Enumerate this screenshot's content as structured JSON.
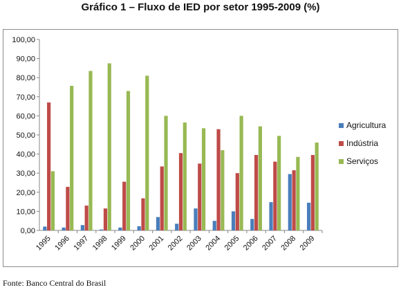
{
  "title": "Gráfico 1 – Fluxo de IED por setor 1995-2009 (%)",
  "source": "Fonte: Banco Central do Brasil",
  "chart_data": {
    "type": "bar",
    "categories": [
      "1995",
      "1996",
      "1997",
      "1998",
      "1999",
      "2000",
      "2001",
      "2002",
      "2003",
      "2004",
      "2005",
      "2006",
      "2007",
      "2008",
      "2009"
    ],
    "series": [
      {
        "name": "Agricultura",
        "color": "#4a7ebb",
        "values": [
          2.0,
          1.5,
          2.8,
          0.5,
          1.5,
          2.2,
          7.0,
          3.5,
          11.5,
          5.0,
          10.0,
          6.0,
          14.8,
          29.5,
          14.5
        ]
      },
      {
        "name": "Indústria",
        "color": "#be4b48",
        "values": [
          67.0,
          22.8,
          13.0,
          11.5,
          25.5,
          16.8,
          33.5,
          40.5,
          35.0,
          53.0,
          30.0,
          39.5,
          36.0,
          31.5,
          39.5
        ]
      },
      {
        "name": "Serviços",
        "color": "#98b954",
        "values": [
          31.0,
          75.7,
          83.5,
          87.5,
          73.0,
          81.0,
          60.0,
          56.5,
          53.5,
          42.0,
          60.0,
          54.5,
          49.5,
          38.5,
          46.0
        ]
      }
    ],
    "ylim": [
      0,
      100
    ],
    "yticks": [
      "0,00",
      "10,00",
      "20,00",
      "30,00",
      "40,00",
      "50,00",
      "60,00",
      "70,00",
      "80,00",
      "90,00",
      "100,00"
    ],
    "grid": false,
    "legend": "right"
  }
}
